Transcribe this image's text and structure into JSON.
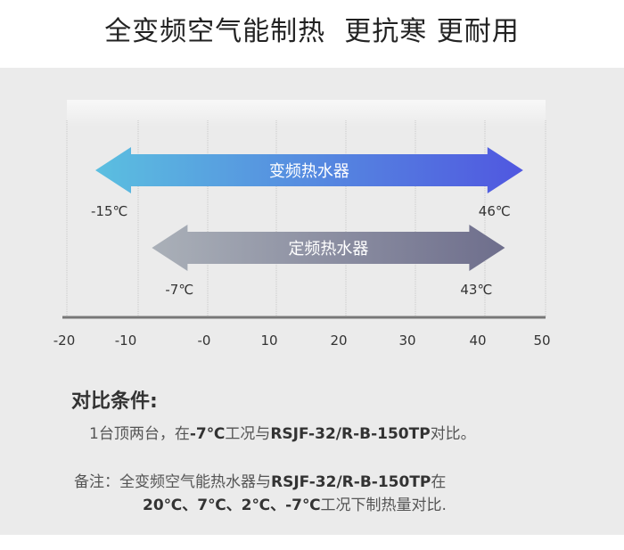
{
  "title": "全变频空气能制热  更抗寒 更耐用",
  "chart_data": {
    "type": "range-arrows",
    "xlim": [
      -20,
      50
    ],
    "x_ticks": [
      "-20",
      "-10",
      "-0",
      "10",
      "20",
      "30",
      "40",
      "50"
    ],
    "grid": true,
    "series": [
      {
        "name": "变频热水器",
        "min": -15,
        "max": 46,
        "min_label": "-15℃",
        "max_label": "46℃",
        "colors": [
          "#5bbfe0",
          "#5057e0"
        ]
      },
      {
        "name": "定频热水器",
        "min": -7,
        "max": 43,
        "min_label": "-7℃",
        "max_label": "43℃",
        "colors": [
          "#aab0b8",
          "#6e6e8c"
        ]
      }
    ]
  },
  "conditions": {
    "heading": "对比条件:",
    "line1_a": "1台顶两台，在",
    "line1_b": "-7℃",
    "line1_c": "工况与",
    "line1_d": "RSJF-32/R-B-150TP",
    "line1_e": "对比。",
    "note_a": "备注：全变频空气能热水器与",
    "note_b": "RSJF-32/R-B-150TP",
    "note_c": "在",
    "note2_a": "20℃、7℃、2℃、-7℃",
    "note2_b": "工况下制热量对比."
  }
}
